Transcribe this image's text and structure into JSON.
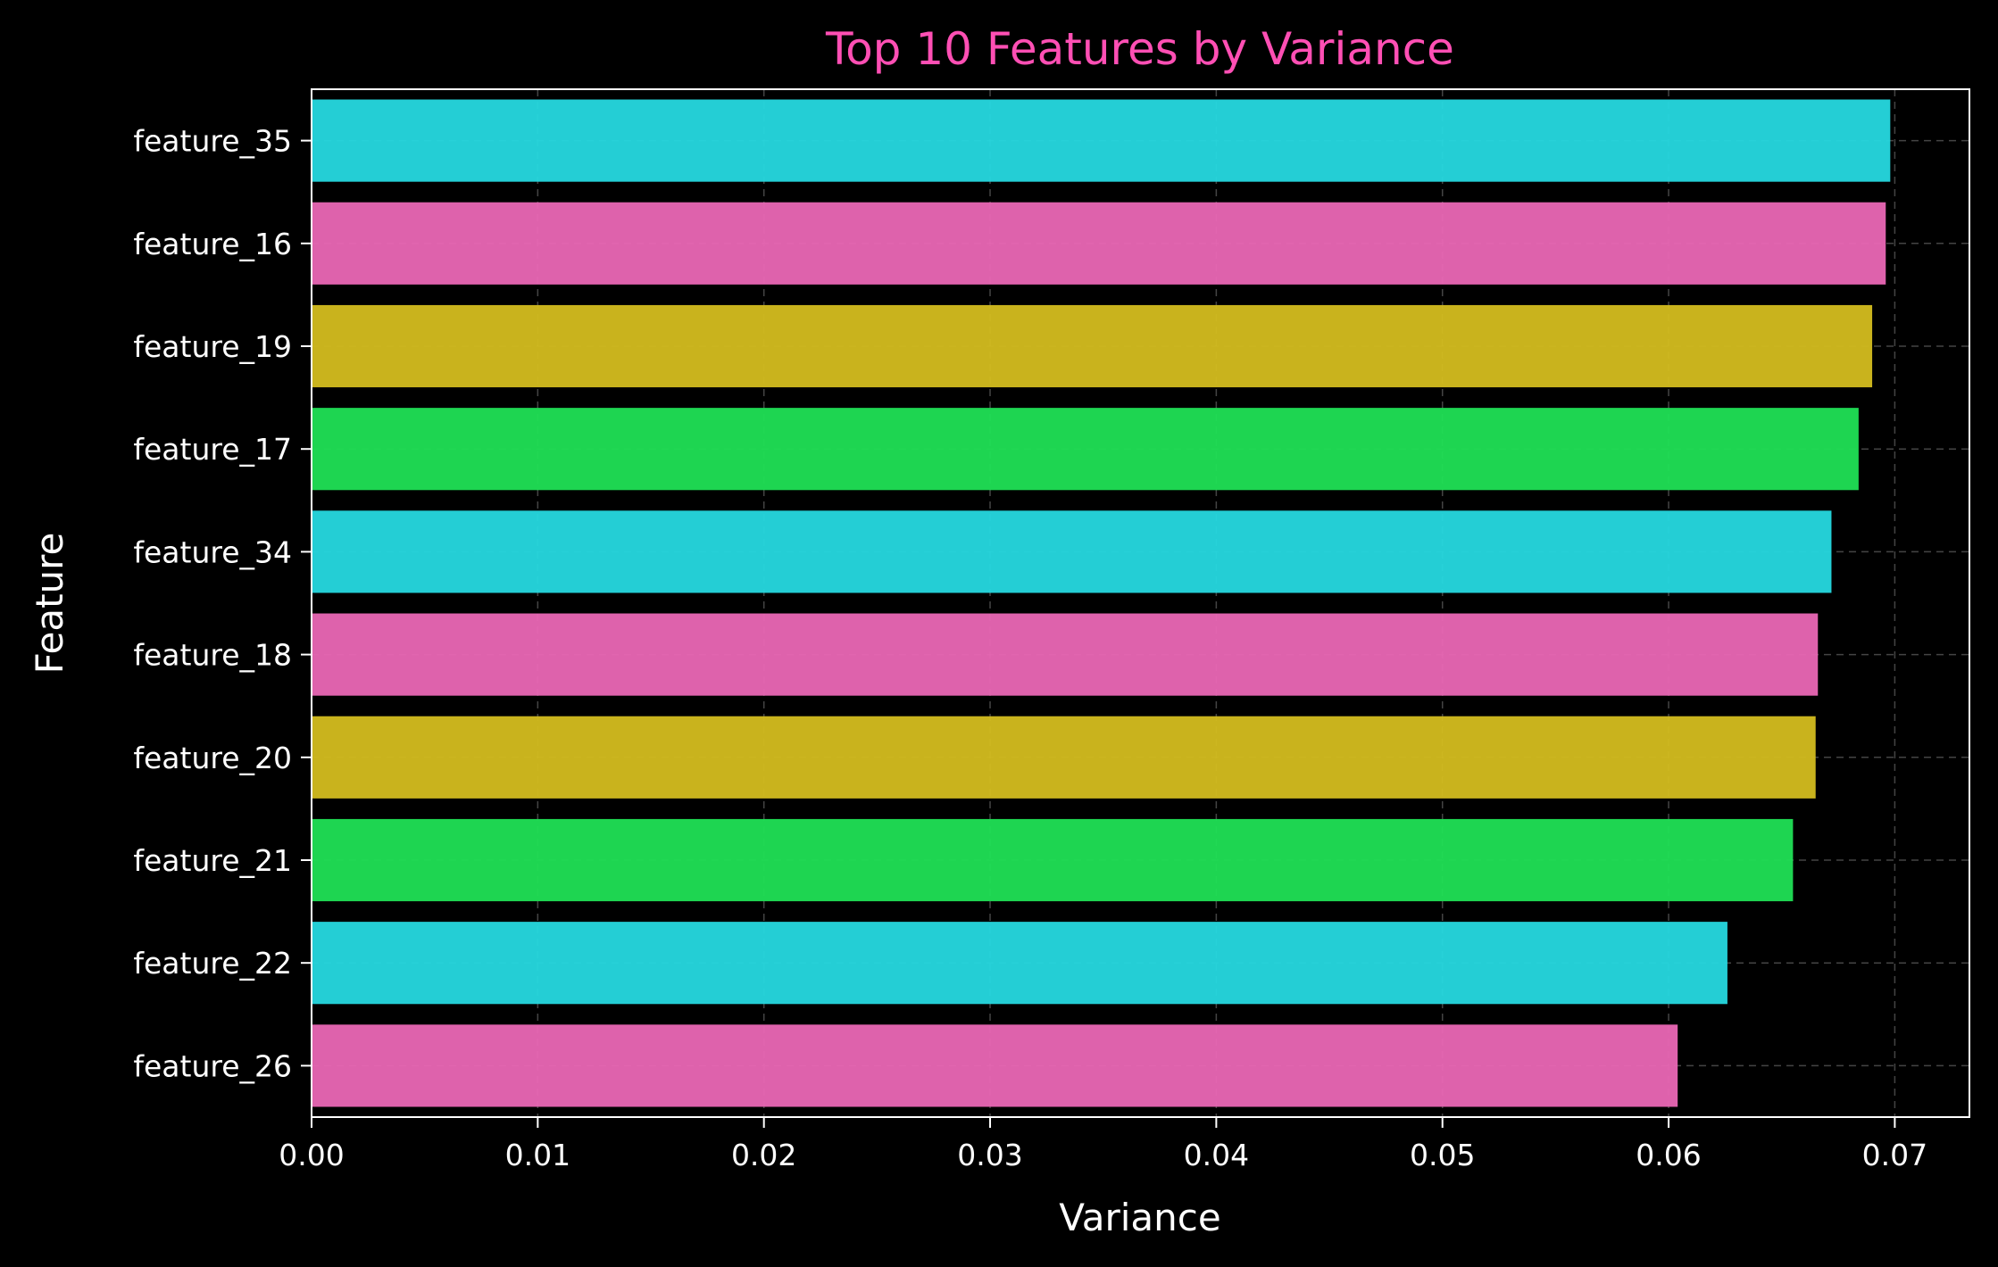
{
  "chart_data": {
    "type": "bar",
    "orientation": "horizontal",
    "title": "Top 10 Features by Variance",
    "xlabel": "Variance",
    "ylabel": "Feature",
    "categories": [
      "feature_35",
      "feature_16",
      "feature_19",
      "feature_17",
      "feature_34",
      "feature_18",
      "feature_20",
      "feature_21",
      "feature_22",
      "feature_26"
    ],
    "values": [
      0.0698,
      0.0696,
      0.069,
      0.0684,
      0.0672,
      0.0666,
      0.0665,
      0.0655,
      0.0626,
      0.0604
    ],
    "bar_colors": [
      "#26d9e0",
      "#ea67b5",
      "#d4bd1f",
      "#20e055",
      "#26d9e0",
      "#ea67b5",
      "#d4bd1f",
      "#20e055",
      "#26d9e0",
      "#ea67b5"
    ],
    "xlim": [
      0,
      0.0733
    ],
    "xticks": [
      0.0,
      0.01,
      0.02,
      0.03,
      0.04,
      0.05,
      0.06,
      0.07
    ],
    "xtick_labels": [
      "0.00",
      "0.01",
      "0.02",
      "0.03",
      "0.04",
      "0.05",
      "0.06",
      "0.07"
    ],
    "grid": true,
    "grid_style": "dashed",
    "colors": {
      "background": "#000000",
      "title": "#ff4fb4",
      "text": "#ffffff",
      "axes": "#ffffff",
      "grid": "#555555"
    }
  }
}
